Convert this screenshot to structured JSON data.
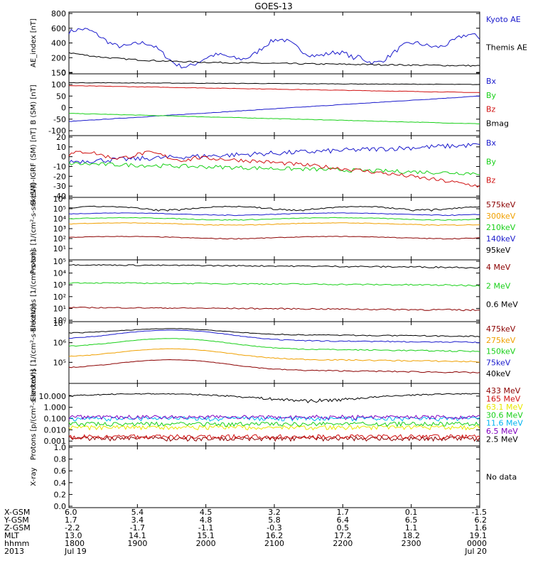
{
  "title": "GOES-13",
  "colors": {
    "black": "#000000",
    "blue": "#1a1acc",
    "red": "#d01010",
    "green": "#18d018",
    "orange": "#f0a000",
    "cyan": "#00b4f0",
    "yellow": "#e8e800",
    "darkred": "#8b0000",
    "purple": "#8000c0"
  },
  "chart_data": [
    {
      "type": "line",
      "ylabel": "AE_index [nT]",
      "ylim": [
        0,
        800
      ],
      "yticks": [
        "800",
        "600",
        "400",
        "200",
        "0"
      ],
      "series": [
        {
          "name": "Kyoto AE",
          "color": "blue"
        },
        {
          "name": "Themis AE",
          "color": "black"
        }
      ]
    },
    {
      "type": "line",
      "ylabel": "B (SM) [nT]",
      "ylim": [
        -115,
        140
      ],
      "yticks": [
        "150",
        "100",
        "50",
        "0",
        "-50",
        "-100"
      ],
      "series": [
        {
          "name": "Bx",
          "color": "blue"
        },
        {
          "name": "By",
          "color": "green"
        },
        {
          "name": "Bz",
          "color": "red"
        },
        {
          "name": "Bmag",
          "color": "black"
        }
      ]
    },
    {
      "type": "line",
      "ylabel": "B (SM)-IGRF (SM) [nT]",
      "ylim": [
        -40,
        20
      ],
      "yticks": [
        "20",
        "10",
        "0",
        "-10",
        "-20",
        "-30",
        "-40"
      ],
      "series": [
        {
          "name": "Bx",
          "color": "blue"
        },
        {
          "name": "By",
          "color": "green"
        },
        {
          "name": "Bz",
          "color": "red"
        }
      ]
    },
    {
      "type": "line",
      "ylabel": "Protons [1/(cm²-s-sr-keV)]",
      "ylim": [
        1,
        1000000.0
      ],
      "log": true,
      "yticks": [
        "10⁶",
        "10⁵",
        "10⁴",
        "10³",
        "10²",
        "10¹"
      ],
      "series": [
        {
          "name": "575keV",
          "color": "darkred"
        },
        {
          "name": "300keV",
          "color": "orange"
        },
        {
          "name": "210keV",
          "color": "green"
        },
        {
          "name": "140keV",
          "color": "blue"
        },
        {
          "name": "95keV",
          "color": "black"
        }
      ]
    },
    {
      "type": "line",
      "ylabel": "Electrons [1/(cm²-s-sr)]",
      "ylim": [
        1,
        100000.0
      ],
      "log": true,
      "yticks": [
        "10⁵",
        "10⁴",
        "10³",
        "10²",
        "10¹",
        "10⁰"
      ],
      "series": [
        {
          "name": "4 MeV",
          "color": "darkred"
        },
        {
          "name": "2 MeV",
          "color": "green"
        },
        {
          "name": "0.6 MeV",
          "color": "black"
        }
      ]
    },
    {
      "type": "line",
      "ylabel": "Electrons [1/(cm²-s-sr-keV)]",
      "ylim": [
        10000.0,
        10000000.0
      ],
      "log": true,
      "yticks": [
        "10⁷",
        "10⁶",
        "10⁵"
      ],
      "series": [
        {
          "name": "475keV",
          "color": "darkred"
        },
        {
          "name": "275keV",
          "color": "orange"
        },
        {
          "name": "150keV",
          "color": "green"
        },
        {
          "name": "75keV",
          "color": "blue"
        },
        {
          "name": "40keV",
          "color": "black"
        }
      ]
    },
    {
      "type": "line",
      "ylabel": "Protons [p/(cm²-s-sr-keV)]",
      "ylim": [
        0.0005,
        100
      ],
      "log": true,
      "yticks": [
        "10.000",
        "1.000",
        "0.100",
        "0.010",
        "0.001"
      ],
      "series": [
        {
          "name": "433 MeV",
          "color": "darkred"
        },
        {
          "name": "165 MeV",
          "color": "red"
        },
        {
          "name": "63.1 MeV",
          "color": "yellow"
        },
        {
          "name": "30.6 MeV",
          "color": "green"
        },
        {
          "name": "11.6 MeV",
          "color": "cyan"
        },
        {
          "name": "6.5 MeV",
          "color": "purple"
        },
        {
          "name": "2.5 MeV",
          "color": "black"
        }
      ]
    },
    {
      "type": "line",
      "ylabel": "X-ray",
      "ylim": [
        0,
        1
      ],
      "yticks": [
        "1.0",
        "0.8",
        "0.6",
        "0.4",
        "0.2",
        "0.0"
      ],
      "series": [],
      "note": "No data"
    }
  ],
  "xaxis": {
    "labels": [
      "X-GSM",
      "Y-GSM",
      "Z-GSM",
      "MLT",
      "hhmm",
      "2013"
    ],
    "columns": [
      {
        "X-GSM": "6.0",
        "Y-GSM": "1.7",
        "Z-GSM": "-2.2",
        "MLT": "13.0",
        "hhmm": "1800",
        "2013": "Jul 19"
      },
      {
        "X-GSM": "5.4",
        "Y-GSM": "3.4",
        "Z-GSM": "-1.7",
        "MLT": "14.1",
        "hhmm": "1900",
        "2013": ""
      },
      {
        "X-GSM": "4.5",
        "Y-GSM": "4.8",
        "Z-GSM": "-1.1",
        "MLT": "15.1",
        "hhmm": "2000",
        "2013": ""
      },
      {
        "X-GSM": "3.2",
        "Y-GSM": "5.8",
        "Z-GSM": "-0.3",
        "MLT": "16.2",
        "hhmm": "2100",
        "2013": ""
      },
      {
        "X-GSM": "1.7",
        "Y-GSM": "6.4",
        "Z-GSM": "0.5",
        "MLT": "17.2",
        "hhmm": "2200",
        "2013": ""
      },
      {
        "X-GSM": "0.1",
        "Y-GSM": "6.5",
        "Z-GSM": "1.1",
        "MLT": "18.2",
        "hhmm": "2300",
        "2013": ""
      },
      {
        "X-GSM": "-1.5",
        "Y-GSM": "6.2",
        "Z-GSM": "1.6",
        "MLT": "19.1",
        "hhmm": "0000",
        "2013": "Jul 20"
      }
    ]
  }
}
